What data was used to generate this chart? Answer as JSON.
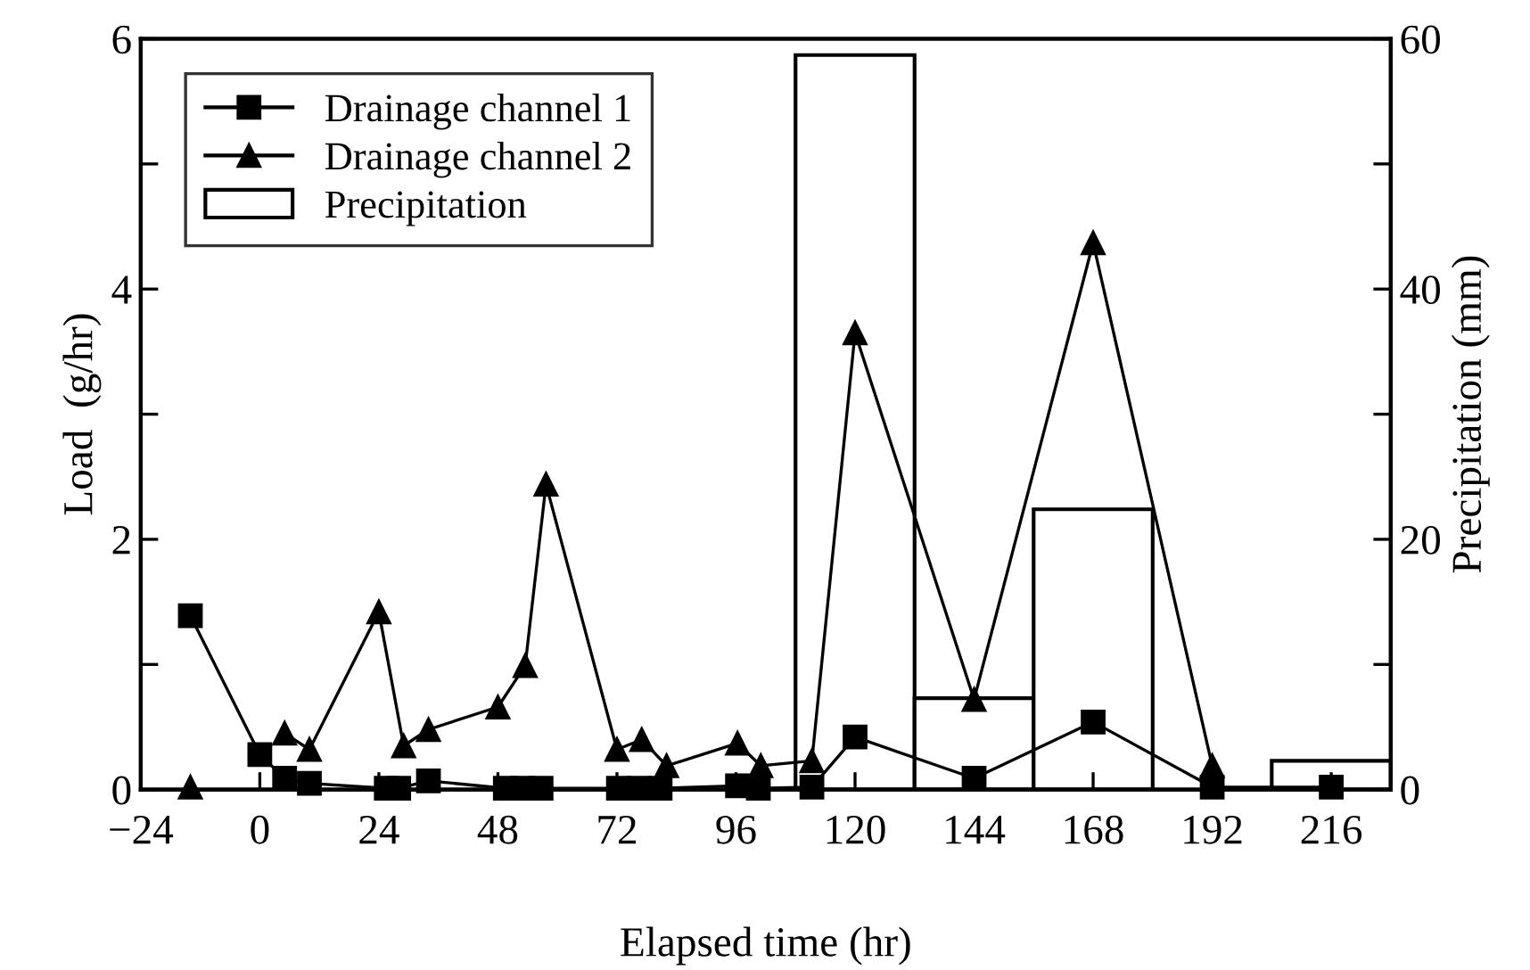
{
  "chart_data": {
    "type": "line",
    "xlabel": "Elapsed time (hr)",
    "ylabel": "Load  (g/hr)",
    "y2label": "Precipitation (mm)",
    "xlim": [
      -24,
      228
    ],
    "xticks": [
      -24,
      0,
      24,
      48,
      72,
      96,
      120,
      144,
      168,
      192,
      216
    ],
    "ylim": [
      0,
      6
    ],
    "yticks": [
      0,
      {
        "value": 1,
        "label": null
      },
      2,
      {
        "value": 3,
        "label": null
      },
      4,
      {
        "value": 5,
        "label": null
      },
      6
    ],
    "y2lim": [
      0,
      60
    ],
    "y2ticks": [
      0,
      {
        "value": 10,
        "label": null
      },
      20,
      {
        "value": 30,
        "label": null
      },
      40,
      {
        "value": 50,
        "label": null
      },
      60
    ],
    "legend": "top left",
    "grid": false,
    "line_style": "solid",
    "series": [
      {
        "name": "Precipitation",
        "type": "bar",
        "axis": "y2",
        "color": "#ffffff",
        "x": [
          120,
          144,
          168,
          216
        ],
        "values": [
          58.7,
          7.3,
          22.4,
          2.3
        ]
      },
      {
        "name": "Drainage channel 1",
        "marker": "square",
        "color": "#000000",
        "x": [
          -14,
          0,
          5,
          10,
          25.5,
          28,
          34,
          49.5,
          53,
          56.7,
          72.3,
          76.5,
          80.7,
          96.3,
          100.5,
          111.3,
          120,
          144,
          168,
          192,
          216
        ],
        "values": [
          1.39,
          0.28,
          0.09,
          0.05,
          0.01,
          0.01,
          0.07,
          0.01,
          0.01,
          0.01,
          0.01,
          0.01,
          0.01,
          0.03,
          0.01,
          0.02,
          0.42,
          0.09,
          0.54,
          0.02,
          0.02
        ]
      },
      {
        "name": "Drainage channel 2",
        "marker": "triangle",
        "color": "#000000",
        "x": [
          -14,
          0,
          5,
          10,
          24,
          29,
          34,
          48,
          53.5,
          57.7,
          72,
          77,
          82,
          96.3,
          101,
          111.3,
          120,
          144,
          168,
          192
        ],
        "values": [
          0.02,
          null,
          0.45,
          0.32,
          1.42,
          0.35,
          0.48,
          0.66,
          0.99,
          2.44,
          0.32,
          0.4,
          0.19,
          0.37,
          0.19,
          0.23,
          3.65,
          0.72,
          4.37,
          0.19
        ]
      }
    ]
  }
}
